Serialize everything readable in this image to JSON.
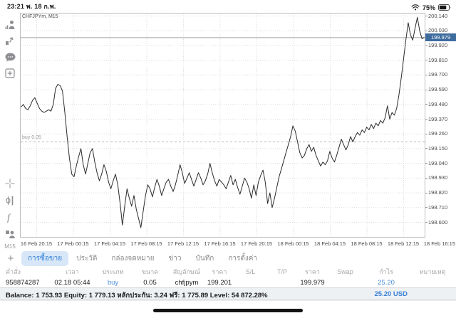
{
  "statusbar": {
    "time": "23:21",
    "date": "พ. 18 ก.พ.",
    "battery": "75%"
  },
  "sidebar": {
    "timeframe": "M15",
    "icons": [
      "trader-icon",
      "chart-up-icon",
      "chat-icon",
      "new-order-icon",
      "crosshair-icon",
      "candles-icon",
      "indicators-icon",
      "objects-icon"
    ]
  },
  "chart": {
    "symbol_label": "CHFJPYm, M15",
    "current_price": "199.979",
    "position_label": "buy 0.05"
  },
  "chart_data": {
    "type": "line",
    "title": "CHFJPYm, M15",
    "timeframe": "M15",
    "x_labels": [
      "16 Feb 20:15",
      "17 Feb 00:15",
      "17 Feb 04:15",
      "17 Feb 08:15",
      "17 Feb 12:15",
      "17 Feb 16:15",
      "17 Feb 20:15",
      "18 Feb 00:15",
      "18 Feb 04:15",
      "18 Feb 08:15",
      "18 Feb 12:15",
      "18 Feb 16:15"
    ],
    "y_labels": [
      "200.140",
      "200.030",
      "199.920",
      "199.810",
      "199.700",
      "199.590",
      "199.480",
      "199.370",
      "199.260",
      "199.150",
      "199.040",
      "198.930",
      "198.820",
      "198.710",
      "198.600"
    ],
    "ylim": [
      198.6,
      200.14
    ],
    "grid": true,
    "current_price": 199.979,
    "position_line": {
      "type": "buy",
      "volume": 0.05,
      "price": 199.201,
      "label": "buy 0.05"
    },
    "series": [
      199.46,
      199.48,
      199.45,
      199.44,
      199.47,
      199.51,
      199.53,
      199.49,
      199.45,
      199.43,
      199.42,
      199.43,
      199.44,
      199.43,
      199.48,
      199.6,
      199.63,
      199.62,
      199.58,
      199.42,
      199.24,
      199.08,
      198.96,
      198.94,
      199.02,
      199.09,
      199.15,
      199.03,
      198.96,
      199.04,
      199.12,
      199.15,
      199.05,
      198.97,
      198.91,
      198.96,
      199.03,
      198.98,
      198.9,
      198.85,
      198.91,
      198.96,
      198.88,
      198.74,
      198.58,
      198.72,
      198.85,
      198.78,
      198.72,
      198.8,
      198.7,
      198.63,
      198.56,
      198.68,
      198.8,
      198.88,
      198.85,
      198.79,
      198.86,
      198.92,
      198.87,
      198.8,
      198.85,
      198.9,
      198.92,
      198.87,
      198.83,
      198.88,
      198.95,
      199.03,
      198.97,
      198.89,
      198.93,
      198.97,
      198.92,
      198.87,
      198.92,
      198.97,
      198.93,
      198.88,
      198.91,
      198.96,
      199.04,
      198.97,
      198.91,
      198.87,
      198.92,
      198.9,
      198.88,
      198.85,
      198.9,
      198.95,
      198.88,
      198.92,
      198.86,
      198.81,
      198.87,
      198.93,
      198.9,
      198.85,
      198.78,
      198.88,
      198.8,
      198.9,
      198.95,
      198.99,
      198.9,
      198.74,
      198.82,
      198.71,
      198.78,
      198.86,
      198.94,
      199.0,
      199.06,
      199.12,
      199.18,
      199.24,
      199.32,
      199.28,
      199.2,
      199.12,
      199.08,
      199.1,
      199.15,
      199.18,
      199.13,
      199.16,
      199.1,
      199.06,
      199.02,
      199.05,
      199.03,
      199.06,
      199.13,
      199.08,
      199.05,
      199.1,
      199.16,
      199.22,
      199.18,
      199.14,
      199.18,
      199.24,
      199.2,
      199.24,
      199.27,
      199.25,
      199.29,
      199.27,
      199.31,
      199.29,
      199.33,
      199.3,
      199.34,
      199.32,
      199.36,
      199.34,
      199.38,
      199.47,
      199.37,
      199.42,
      199.4,
      199.45,
      199.55,
      199.68,
      199.82,
      199.96,
      200.09,
      200.0,
      199.96,
      200.05,
      200.13,
      200.03,
      199.97,
      199.98
    ]
  },
  "tabs": {
    "add_label": "+",
    "items": [
      {
        "name": "trade",
        "label": "การซื้อขาย",
        "active": true
      },
      {
        "name": "history",
        "label": "ประวัติ",
        "active": false
      },
      {
        "name": "mailbox",
        "label": "กล่องจดหมาย",
        "active": false
      },
      {
        "name": "news",
        "label": "ข่าว",
        "active": false
      },
      {
        "name": "journal",
        "label": "บันทึก",
        "active": false
      },
      {
        "name": "settings",
        "label": "การตั้งค่า",
        "active": false
      }
    ]
  },
  "trade_table": {
    "headers": [
      "คำสั่ง",
      "เวลา",
      "ประเภท",
      "ขนาด",
      "สัญลักษณ์",
      "ราคา",
      "S/L",
      "T/P",
      "ราคา",
      "Swap",
      "กำไร",
      "หมายเหตุ"
    ],
    "rows": [
      [
        "958874287",
        "02.18 05:44",
        "buy",
        "0.05",
        "chfjpym",
        "199.201",
        "",
        "",
        "199.979",
        "",
        "25.20",
        ""
      ]
    ]
  },
  "account": {
    "summary": "Balance: 1 753.93 Equity: 1 779.13 หลักประกัน: 3.24 ฟรี: 1 775.89 Level: 54 872.28%",
    "profit": "25.20",
    "currency": "USD",
    "profit_display": "25.20  USD"
  },
  "colors": {
    "accent_blue": "#2d7ed8",
    "badge_blue": "#3d6b9d",
    "profit_blue": "#3b82d8",
    "line_color": "#2b2b2b",
    "grid_color": "#dcdcdc"
  }
}
